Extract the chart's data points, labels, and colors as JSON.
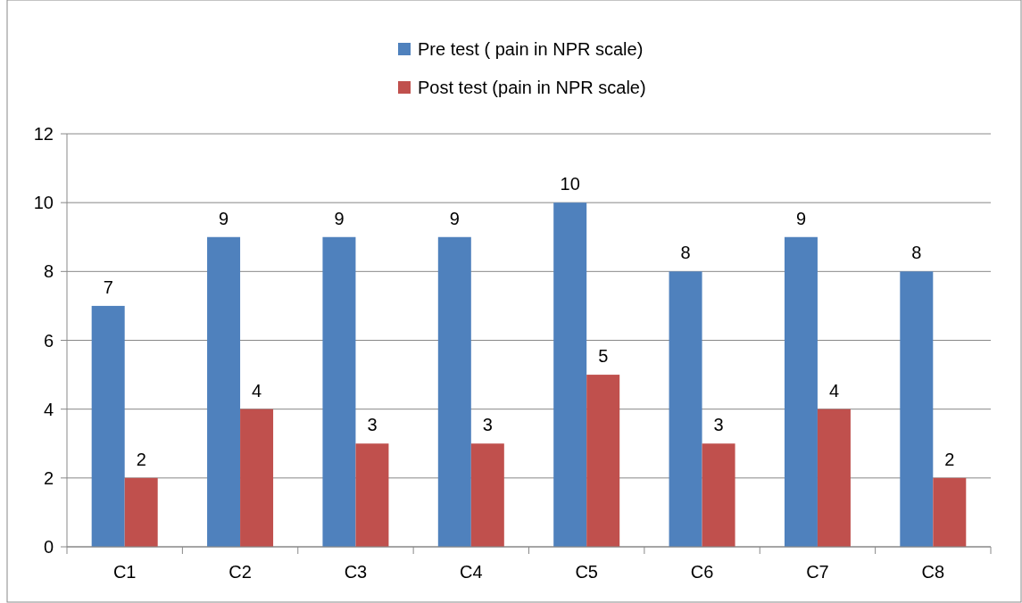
{
  "chart_data": {
    "type": "bar",
    "categories": [
      "C1",
      "C2",
      "C3",
      "C4",
      "C5",
      "C6",
      "C7",
      "C8"
    ],
    "series": [
      {
        "name": "Pre test ( pain in NPR scale)",
        "color": "#4f81bd",
        "values": [
          7,
          9,
          9,
          9,
          10,
          8,
          9,
          8
        ]
      },
      {
        "name": "Post test (pain in NPR scale)",
        "color": "#c0504d",
        "values": [
          2,
          4,
          3,
          3,
          5,
          3,
          4,
          2
        ]
      }
    ],
    "ylim": [
      0,
      12
    ],
    "yticks": [
      0,
      2,
      4,
      6,
      8,
      10,
      12
    ],
    "grid": "y",
    "legend": "top",
    "data_labels": true
  }
}
